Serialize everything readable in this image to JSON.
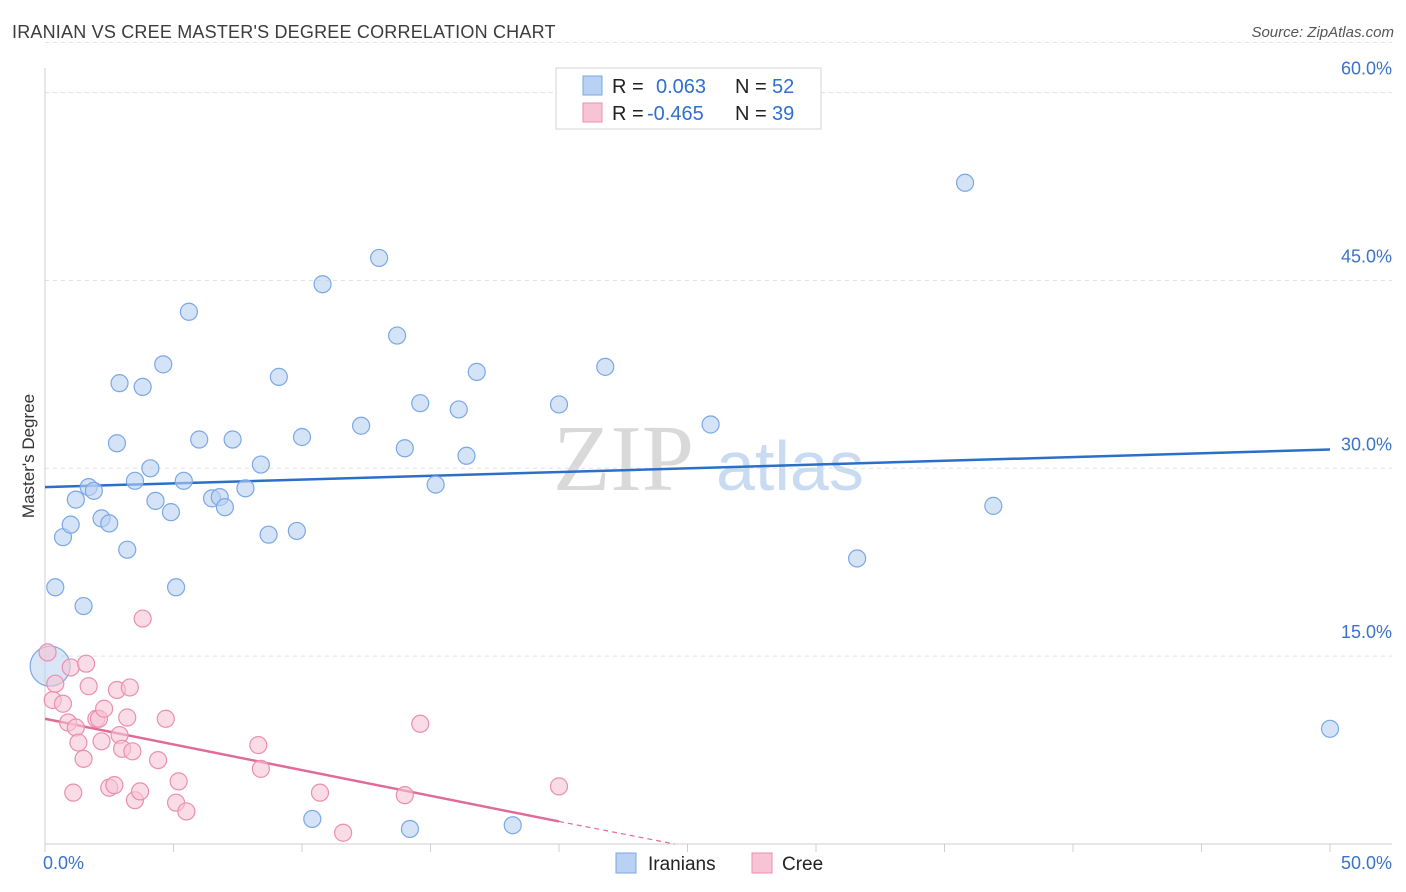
{
  "title": "IRANIAN VS CREE MASTER'S DEGREE CORRELATION CHART",
  "source": "Source: ZipAtlas.com",
  "watermark": {
    "zip": "ZIP",
    "atlas": "atlas"
  },
  "chart_data": {
    "type": "scatter",
    "title": "IRANIAN VS CREE MASTER'S DEGREE CORRELATION CHART",
    "xlabel": "",
    "ylabel": "Master's Degree",
    "xlim": [
      0,
      50
    ],
    "ylim": [
      0,
      65
    ],
    "x_tick_labels": [
      "0.0%",
      "50.0%"
    ],
    "y_ticks": [
      15,
      30,
      45,
      60
    ],
    "y_tick_labels": [
      "15.0%",
      "30.0%",
      "45.0%",
      "60.0%"
    ],
    "legend": [
      {
        "r_label": "R =",
        "r_value": "0.063",
        "n_label": "N =",
        "n_value": "52"
      },
      {
        "r_label": "R =",
        "r_value": "-0.465",
        "n_label": "N =",
        "n_value": "39"
      }
    ],
    "series": [
      {
        "name": "Iranians",
        "color": "#7aa8e6",
        "fill": "#b9d1f2",
        "line_color": "#2a6fca",
        "trend": {
          "x": [
            0,
            50
          ],
          "y": [
            28.5,
            31.5
          ]
        },
        "points": [
          [
            0.4,
            20.5
          ],
          [
            0.7,
            24.5
          ],
          [
            1.0,
            25.5
          ],
          [
            1.2,
            27.5
          ],
          [
            1.5,
            19.0
          ],
          [
            1.7,
            28.5
          ],
          [
            1.9,
            28.2
          ],
          [
            2.2,
            26.0
          ],
          [
            2.5,
            25.6
          ],
          [
            2.8,
            32.0
          ],
          [
            2.9,
            36.8
          ],
          [
            3.2,
            23.5
          ],
          [
            3.5,
            29.0
          ],
          [
            3.8,
            36.5
          ],
          [
            4.1,
            30.0
          ],
          [
            4.3,
            27.4
          ],
          [
            4.6,
            38.3
          ],
          [
            4.9,
            26.5
          ],
          [
            5.1,
            20.5
          ],
          [
            5.4,
            29.0
          ],
          [
            5.6,
            42.5
          ],
          [
            6.0,
            32.3
          ],
          [
            6.5,
            27.6
          ],
          [
            6.8,
            27.7
          ],
          [
            7.0,
            26.9
          ],
          [
            7.3,
            32.3
          ],
          [
            7.8,
            28.4
          ],
          [
            8.4,
            30.3
          ],
          [
            8.7,
            24.7
          ],
          [
            9.1,
            37.3
          ],
          [
            9.8,
            25.0
          ],
          [
            10.0,
            32.5
          ],
          [
            10.4,
            2.0
          ],
          [
            10.8,
            44.7
          ],
          [
            12.3,
            33.4
          ],
          [
            13.0,
            46.8
          ],
          [
            13.7,
            40.6
          ],
          [
            14.0,
            31.6
          ],
          [
            14.2,
            1.2
          ],
          [
            14.6,
            35.2
          ],
          [
            15.2,
            28.7
          ],
          [
            16.1,
            34.7
          ],
          [
            16.4,
            31.0
          ],
          [
            16.8,
            37.7
          ],
          [
            18.2,
            1.5
          ],
          [
            20.0,
            35.1
          ],
          [
            21.8,
            38.1
          ],
          [
            25.9,
            33.5
          ],
          [
            31.6,
            22.8
          ],
          [
            35.8,
            52.8
          ],
          [
            36.9,
            27.0
          ],
          [
            50.0,
            9.2
          ]
        ],
        "big_points": [
          [
            0.2,
            14.2
          ]
        ]
      },
      {
        "name": "Cree",
        "color": "#eb8fae",
        "fill": "#f6c4d5",
        "line_color": "#e06b97",
        "trend": {
          "x": [
            0,
            20
          ],
          "y": [
            10.0,
            1.8
          ]
        },
        "trend_dashed": {
          "x": [
            20,
            24.5
          ],
          "y": [
            1.8,
            0
          ]
        },
        "points": [
          [
            0.1,
            15.3
          ],
          [
            0.3,
            11.5
          ],
          [
            0.4,
            12.8
          ],
          [
            0.7,
            11.2
          ],
          [
            0.9,
            9.7
          ],
          [
            1.0,
            14.1
          ],
          [
            1.1,
            4.1
          ],
          [
            1.2,
            9.3
          ],
          [
            1.3,
            8.1
          ],
          [
            1.5,
            6.8
          ],
          [
            1.6,
            14.4
          ],
          [
            1.7,
            12.6
          ],
          [
            2.0,
            10.0
          ],
          [
            2.1,
            10.0
          ],
          [
            2.2,
            8.2
          ],
          [
            2.3,
            10.8
          ],
          [
            2.5,
            4.5
          ],
          [
            2.7,
            4.7
          ],
          [
            2.8,
            12.3
          ],
          [
            2.9,
            8.7
          ],
          [
            3.0,
            7.6
          ],
          [
            3.2,
            10.1
          ],
          [
            3.3,
            12.5
          ],
          [
            3.4,
            7.4
          ],
          [
            3.5,
            3.5
          ],
          [
            3.7,
            4.2
          ],
          [
            3.8,
            18.0
          ],
          [
            4.4,
            6.7
          ],
          [
            4.7,
            10.0
          ],
          [
            5.1,
            3.3
          ],
          [
            5.2,
            5.0
          ],
          [
            5.5,
            2.6
          ],
          [
            8.3,
            7.9
          ],
          [
            8.4,
            6.0
          ],
          [
            10.7,
            4.1
          ],
          [
            11.6,
            0.9
          ],
          [
            14.0,
            3.9
          ],
          [
            14.6,
            9.6
          ],
          [
            20.0,
            4.6
          ]
        ]
      }
    ]
  }
}
